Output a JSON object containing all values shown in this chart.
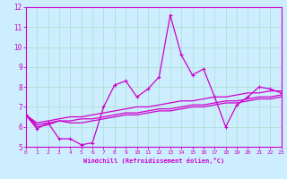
{
  "xlabel": "Windchill (Refroidissement éolien,°C)",
  "bg_color": "#cceeff",
  "line_color": "#cc00cc",
  "grid_color": "#aaddcc",
  "x_data": [
    0,
    1,
    2,
    3,
    4,
    5,
    6,
    7,
    8,
    9,
    10,
    11,
    12,
    13,
    14,
    15,
    16,
    17,
    18,
    19,
    20,
    21,
    22,
    23
  ],
  "series1": [
    6.6,
    5.9,
    6.2,
    5.4,
    5.4,
    5.1,
    5.2,
    7.0,
    8.1,
    8.3,
    7.5,
    7.9,
    8.5,
    11.6,
    9.6,
    8.6,
    8.9,
    7.5,
    6.0,
    7.1,
    7.5,
    8.0,
    7.9,
    7.7
  ],
  "series2": [
    6.6,
    6.2,
    6.3,
    6.4,
    6.5,
    6.5,
    6.6,
    6.7,
    6.8,
    6.9,
    7.0,
    7.0,
    7.1,
    7.2,
    7.3,
    7.3,
    7.4,
    7.5,
    7.5,
    7.6,
    7.7,
    7.7,
    7.8,
    7.8
  ],
  "series3": [
    6.6,
    6.1,
    6.2,
    6.3,
    6.3,
    6.4,
    6.4,
    6.5,
    6.6,
    6.7,
    6.7,
    6.8,
    6.9,
    6.9,
    7.0,
    7.1,
    7.1,
    7.2,
    7.3,
    7.3,
    7.4,
    7.5,
    7.5,
    7.6
  ],
  "series4": [
    6.6,
    6.0,
    6.1,
    6.3,
    6.2,
    6.2,
    6.3,
    6.4,
    6.5,
    6.6,
    6.6,
    6.7,
    6.8,
    6.8,
    6.9,
    7.0,
    7.0,
    7.1,
    7.2,
    7.2,
    7.3,
    7.4,
    7.4,
    7.5
  ],
  "ylim": [
    5,
    12
  ],
  "xlim": [
    0,
    23
  ],
  "yticks": [
    5,
    6,
    7,
    8,
    9,
    10,
    11,
    12
  ],
  "xticks": [
    0,
    1,
    2,
    3,
    4,
    5,
    6,
    7,
    8,
    9,
    10,
    11,
    12,
    13,
    14,
    15,
    16,
    17,
    18,
    19,
    20,
    21,
    22,
    23
  ]
}
